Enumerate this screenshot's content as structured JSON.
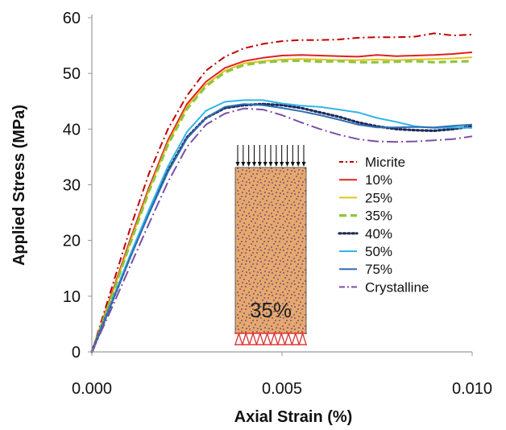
{
  "chart_data": {
    "type": "line",
    "title": "",
    "xlabel": "Axial Strain (%)",
    "ylabel": "Applied Stress (MPa)",
    "xlim": [
      0,
      0.01
    ],
    "ylim": [
      0,
      60
    ],
    "xticks": [
      "0.000",
      "0.005",
      "0.010"
    ],
    "xtick_values": [
      0,
      0.005,
      0.01
    ],
    "yticks": [
      "0",
      "10",
      "20",
      "30",
      "40",
      "50",
      "60"
    ],
    "ytick_values": [
      0,
      10,
      20,
      30,
      40,
      50,
      60
    ],
    "grid": false,
    "legend_position": "right",
    "inset": {
      "label": "35%"
    },
    "series": [
      {
        "name": "Micrite",
        "color": "#C00000",
        "dash": "dashdot",
        "x": [
          0,
          0.0005,
          0.001,
          0.0015,
          0.002,
          0.0025,
          0.003,
          0.0035,
          0.004,
          0.0045,
          0.005,
          0.0055,
          0.006,
          0.0065,
          0.007,
          0.0075,
          0.008,
          0.0085,
          0.009,
          0.0095,
          0.01
        ],
        "y": [
          0,
          11,
          22,
          32,
          40,
          46,
          50.5,
          53,
          54.5,
          55.3,
          55.8,
          56,
          56,
          56.1,
          56.4,
          56.5,
          56.5,
          56.6,
          57.2,
          56.8,
          57
        ]
      },
      {
        "name": "10%",
        "color": "#E02020",
        "dash": "solid",
        "x": [
          0,
          0.0005,
          0.001,
          0.0015,
          0.002,
          0.0025,
          0.003,
          0.0035,
          0.004,
          0.0045,
          0.005,
          0.0055,
          0.006,
          0.0065,
          0.007,
          0.0075,
          0.008,
          0.0085,
          0.009,
          0.0095,
          0.01
        ],
        "y": [
          0,
          10,
          20,
          29.5,
          38,
          44.5,
          48.5,
          51,
          52.2,
          52.8,
          53.2,
          53.3,
          53.2,
          53.1,
          53,
          53.3,
          53.1,
          53.2,
          53.3,
          53.5,
          53.8
        ]
      },
      {
        "name": "25%",
        "color": "#E8C21E",
        "dash": "solid",
        "x": [
          0,
          0.0005,
          0.001,
          0.0015,
          0.002,
          0.0025,
          0.003,
          0.0035,
          0.004,
          0.0045,
          0.005,
          0.0055,
          0.006,
          0.0065,
          0.007,
          0.0075,
          0.008,
          0.0085,
          0.009,
          0.0095,
          0.01
        ],
        "y": [
          0,
          9.6,
          19.5,
          29,
          37.5,
          44,
          48,
          50.5,
          51.8,
          52.2,
          52.5,
          52.6,
          52.5,
          52.4,
          52.4,
          52.5,
          52.4,
          52.5,
          52.6,
          52.7,
          52.9
        ]
      },
      {
        "name": "35%",
        "color": "#8DC63F",
        "dash": "dashed",
        "x": [
          0,
          0.0005,
          0.001,
          0.0015,
          0.002,
          0.0025,
          0.003,
          0.0035,
          0.004,
          0.0045,
          0.005,
          0.0055,
          0.006,
          0.0065,
          0.007,
          0.0075,
          0.008,
          0.0085,
          0.009,
          0.0095,
          0.01
        ],
        "y": [
          0,
          9.5,
          19.3,
          28.8,
          37.2,
          43.6,
          47.7,
          50.2,
          51.5,
          52,
          52.2,
          52.3,
          52.1,
          52.2,
          52,
          52,
          52.1,
          52.2,
          52,
          52.1,
          52.2
        ]
      },
      {
        "name": "40%",
        "color": "#1F2A5A",
        "dash": "dotted",
        "x": [
          0,
          0.0005,
          0.001,
          0.0015,
          0.002,
          0.0025,
          0.003,
          0.0035,
          0.004,
          0.0045,
          0.005,
          0.0055,
          0.006,
          0.0065,
          0.007,
          0.0075,
          0.008,
          0.0085,
          0.009,
          0.0095,
          0.01
        ],
        "y": [
          0,
          8.5,
          17,
          25,
          32.5,
          38.5,
          42,
          43.8,
          44.3,
          44.5,
          44.3,
          43.8,
          43,
          42.2,
          41.2,
          40.5,
          40,
          39.8,
          39.7,
          40,
          40.5
        ]
      },
      {
        "name": "50%",
        "color": "#33B5E5",
        "dash": "solid",
        "x": [
          0,
          0.0005,
          0.001,
          0.0015,
          0.002,
          0.0025,
          0.003,
          0.0035,
          0.004,
          0.0045,
          0.005,
          0.0055,
          0.006,
          0.0065,
          0.007,
          0.0075,
          0.008,
          0.0085,
          0.009,
          0.0095,
          0.01
        ],
        "y": [
          0,
          8.6,
          17.3,
          25.5,
          33.3,
          39.5,
          43.3,
          44.9,
          45.2,
          45.2,
          44.6,
          44.2,
          44,
          43.5,
          43,
          42,
          41.3,
          40.5,
          40.2,
          40.3,
          40.2
        ]
      },
      {
        "name": "75%",
        "color": "#2E6DB4",
        "dash": "solid",
        "x": [
          0,
          0.0005,
          0.001,
          0.0015,
          0.002,
          0.0025,
          0.003,
          0.0035,
          0.004,
          0.0045,
          0.005,
          0.0055,
          0.006,
          0.0065,
          0.007,
          0.0075,
          0.008,
          0.0085,
          0.009,
          0.0095,
          0.01
        ],
        "y": [
          0,
          8.4,
          16.8,
          24.8,
          32.3,
          38.3,
          42,
          44,
          44.5,
          44.3,
          43.8,
          43.2,
          42.5,
          41.7,
          40.8,
          40.3,
          40.3,
          40.4,
          40.3,
          40.6,
          40.8
        ]
      },
      {
        "name": "Crystalline",
        "color": "#7B4FA6",
        "dash": "longdashdot",
        "x": [
          0,
          0.0005,
          0.001,
          0.0015,
          0.002,
          0.0025,
          0.003,
          0.0035,
          0.004,
          0.0045,
          0.005,
          0.0055,
          0.006,
          0.0065,
          0.007,
          0.0075,
          0.008,
          0.0085,
          0.009,
          0.0095,
          0.01
        ],
        "y": [
          0,
          7.5,
          15.3,
          23,
          30.5,
          36.8,
          40.8,
          42.8,
          43.7,
          43.5,
          42.5,
          41.2,
          40,
          39,
          38.2,
          37.8,
          37.7,
          37.8,
          38,
          38.2,
          38.7
        ]
      }
    ]
  }
}
